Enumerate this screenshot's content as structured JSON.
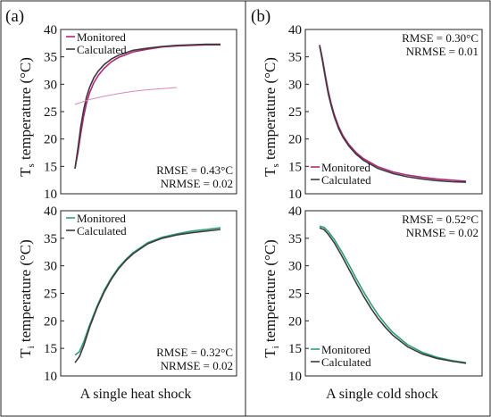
{
  "figure": {
    "panel_labels": [
      "(a)",
      "(b)"
    ],
    "column_captions": [
      "A single heat shock",
      "A single cold shock"
    ]
  },
  "colors": {
    "monitored_pink": "#b0267a",
    "monitored_green": "#2e9e78",
    "calculated": "#3b3b3b"
  },
  "chart_data": [
    {
      "id": "a-top",
      "type": "line",
      "ylabel": "Ts temperature (°C)",
      "ylabel_main": "T",
      "ylabel_sub": "s",
      "ylabel_rest": " temperature (°C)",
      "ylim": [
        10,
        40
      ],
      "yticks": [
        "10",
        "15",
        "20",
        "25",
        "30",
        "35",
        "40"
      ],
      "xlim": [
        0,
        1
      ],
      "stats": [
        "RMSE = 0.43°C",
        "NRMSE = 0.02"
      ],
      "stats_corner": "bottom-right",
      "legend_pos": "top-left",
      "series": [
        {
          "name": "Monitored",
          "color": "#b0267a",
          "x": [
            0,
            0.02,
            0.04,
            0.06,
            0.08,
            0.1,
            0.13,
            0.16,
            0.2,
            0.25,
            0.3,
            0.4,
            0.5,
            0.6,
            0.7,
            0.8,
            0.9,
            1.0
          ],
          "y": [
            14.6,
            17.5,
            21.0,
            24.2,
            26.6,
            28.4,
            30.3,
            31.6,
            32.9,
            34.1,
            34.9,
            35.9,
            36.4,
            36.8,
            37.0,
            37.1,
            37.2,
            37.2
          ]
        },
        {
          "name": "Calculated",
          "color": "#3b3b3b",
          "x": [
            0,
            0.02,
            0.04,
            0.06,
            0.08,
            0.1,
            0.13,
            0.16,
            0.2,
            0.25,
            0.3,
            0.4,
            0.5,
            0.6,
            0.7,
            0.8,
            0.9,
            1.0
          ],
          "y": [
            14.6,
            18.3,
            22.3,
            25.4,
            27.7,
            29.4,
            31.2,
            32.4,
            33.6,
            34.6,
            35.3,
            36.2,
            36.6,
            36.9,
            37.1,
            37.2,
            37.3,
            37.3
          ]
        },
        {
          "name": "",
          "color": "#d48ab8",
          "x": [
            0.0,
            0.1,
            0.2,
            0.3,
            0.4,
            0.5,
            0.6,
            0.7
          ],
          "y": [
            26.3,
            27.2,
            27.8,
            28.3,
            28.7,
            29.0,
            29.2,
            29.4
          ]
        }
      ]
    },
    {
      "id": "a-bottom",
      "type": "line",
      "ylabel": "Ti temperature (°C)",
      "ylabel_main": "T",
      "ylabel_sub": "i",
      "ylabel_rest": " temperature (°C)",
      "ylim": [
        10,
        40
      ],
      "yticks": [
        "10",
        "15",
        "20",
        "25",
        "30",
        "35",
        "40"
      ],
      "xlim": [
        0,
        1
      ],
      "stats": [
        "RMSE = 0.32°C",
        "NRMSE = 0.02"
      ],
      "stats_corner": "bottom-right",
      "legend_pos": "top-left",
      "series": [
        {
          "name": "Monitored",
          "color": "#2e9e78",
          "x": [
            0,
            0.03,
            0.06,
            0.1,
            0.15,
            0.2,
            0.25,
            0.3,
            0.35,
            0.4,
            0.5,
            0.6,
            0.7,
            0.8,
            0.9,
            1.0
          ],
          "y": [
            13.8,
            14.4,
            16.2,
            19.2,
            22.6,
            25.5,
            27.8,
            29.7,
            31.2,
            32.4,
            34.2,
            35.2,
            35.8,
            36.3,
            36.6,
            36.9
          ]
        },
        {
          "name": "Calculated",
          "color": "#3b3b3b",
          "x": [
            0,
            0.03,
            0.06,
            0.1,
            0.15,
            0.2,
            0.25,
            0.3,
            0.35,
            0.4,
            0.5,
            0.6,
            0.7,
            0.8,
            0.9,
            1.0
          ],
          "y": [
            12.4,
            13.5,
            15.5,
            18.8,
            22.3,
            25.2,
            27.6,
            29.5,
            31.0,
            32.2,
            34.0,
            35.0,
            35.6,
            36.0,
            36.3,
            36.6
          ]
        }
      ]
    },
    {
      "id": "b-top",
      "type": "line",
      "ylabel": "Ts temperature (°C)",
      "ylabel_main": "T",
      "ylabel_sub": "s",
      "ylabel_rest": " temperature (°C)",
      "ylim": [
        10,
        40
      ],
      "yticks": [
        "10",
        "15",
        "20",
        "25",
        "30",
        "35",
        "40"
      ],
      "xlim": [
        0,
        1
      ],
      "stats": [
        "RMSE = 0.30°C",
        "NRMSE = 0.01"
      ],
      "stats_corner": "top-right",
      "legend_pos": "bottom-left",
      "series": [
        {
          "name": "Monitored",
          "color": "#b0267a",
          "x": [
            0,
            0.02,
            0.04,
            0.06,
            0.08,
            0.1,
            0.13,
            0.16,
            0.2,
            0.25,
            0.3,
            0.4,
            0.5,
            0.6,
            0.7,
            0.8,
            0.9,
            1.0
          ],
          "y": [
            37.2,
            34.6,
            31.5,
            28.7,
            26.4,
            24.5,
            22.3,
            20.6,
            19.0,
            17.5,
            16.4,
            14.9,
            14.0,
            13.4,
            13.0,
            12.7,
            12.5,
            12.3
          ]
        },
        {
          "name": "Calculated",
          "color": "#3b3b3b",
          "x": [
            0,
            0.02,
            0.04,
            0.06,
            0.08,
            0.1,
            0.13,
            0.16,
            0.2,
            0.25,
            0.3,
            0.4,
            0.5,
            0.6,
            0.7,
            0.8,
            0.9,
            1.0
          ],
          "y": [
            37.0,
            34.2,
            31.0,
            28.2,
            26.0,
            24.1,
            21.9,
            20.3,
            18.7,
            17.2,
            16.1,
            14.6,
            13.7,
            13.1,
            12.7,
            12.4,
            12.2,
            12.1
          ]
        }
      ]
    },
    {
      "id": "b-bottom",
      "type": "line",
      "ylabel": "Ti temperature (°C)",
      "ylabel_main": "T",
      "ylabel_sub": "i",
      "ylabel_rest": " temperature (°C)",
      "ylim": [
        10,
        40
      ],
      "yticks": [
        "10",
        "15",
        "20",
        "25",
        "30",
        "35",
        "40"
      ],
      "xlim": [
        0,
        1
      ],
      "stats": [
        "RMSE = 0.52°C",
        "NRMSE = 0.02"
      ],
      "stats_corner": "top-right",
      "legend_pos": "bottom-left",
      "series": [
        {
          "name": "Monitored",
          "color": "#2e9e78",
          "x": [
            0,
            0.03,
            0.06,
            0.1,
            0.15,
            0.2,
            0.25,
            0.3,
            0.35,
            0.4,
            0.45,
            0.5,
            0.6,
            0.7,
            0.8,
            0.9,
            1.0
          ],
          "y": [
            37.2,
            37.0,
            36.2,
            34.8,
            32.6,
            30.2,
            27.7,
            25.3,
            23.1,
            21.1,
            19.4,
            17.9,
            15.7,
            14.3,
            13.4,
            12.8,
            12.4
          ]
        },
        {
          "name": "Calculated",
          "color": "#3b3b3b",
          "x": [
            0,
            0.03,
            0.06,
            0.1,
            0.15,
            0.2,
            0.25,
            0.3,
            0.35,
            0.4,
            0.45,
            0.5,
            0.6,
            0.7,
            0.8,
            0.9,
            1.0
          ],
          "y": [
            36.9,
            36.6,
            35.7,
            34.2,
            31.9,
            29.4,
            26.9,
            24.5,
            22.3,
            20.4,
            18.8,
            17.4,
            15.3,
            14.0,
            13.2,
            12.7,
            12.3
          ]
        }
      ]
    }
  ]
}
